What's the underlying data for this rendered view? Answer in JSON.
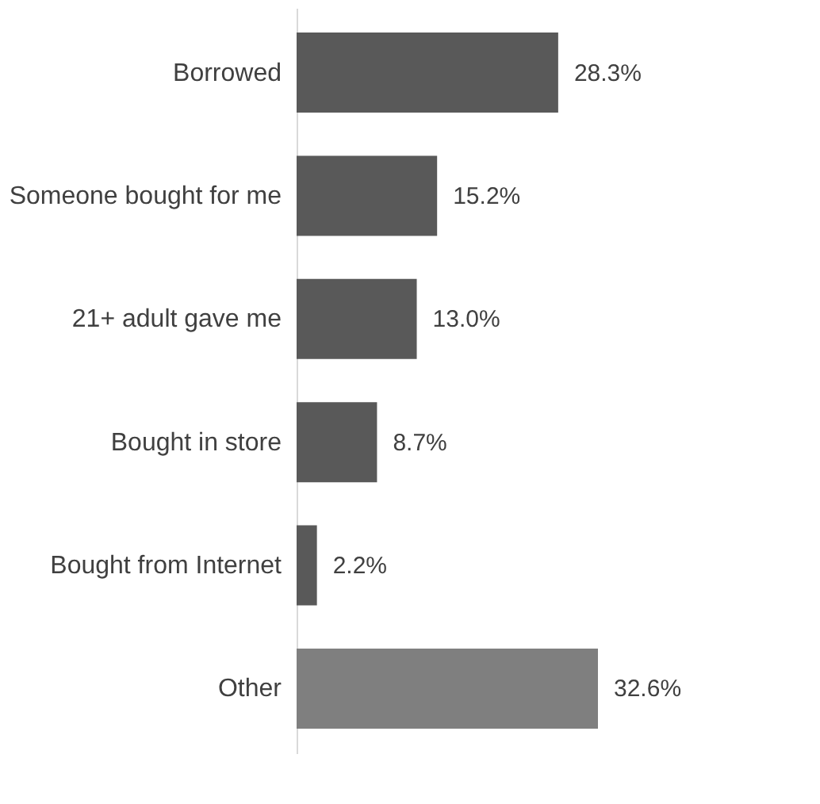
{
  "chart_data": {
    "type": "bar",
    "orientation": "horizontal",
    "categories": [
      "Borrowed",
      "Someone bought for me",
      "21+ adult gave me",
      "Bought in store",
      "Bought from Internet",
      "Other"
    ],
    "values": [
      28.3,
      15.2,
      13.0,
      8.7,
      2.2,
      32.6
    ],
    "colors": [
      "#595959",
      "#595959",
      "#595959",
      "#595959",
      "#595959",
      "#7f7f7f"
    ],
    "value_labels": [
      "28.3%",
      "15.2%",
      "13.0%",
      "8.7%",
      "2.2%",
      "32.6%"
    ]
  }
}
